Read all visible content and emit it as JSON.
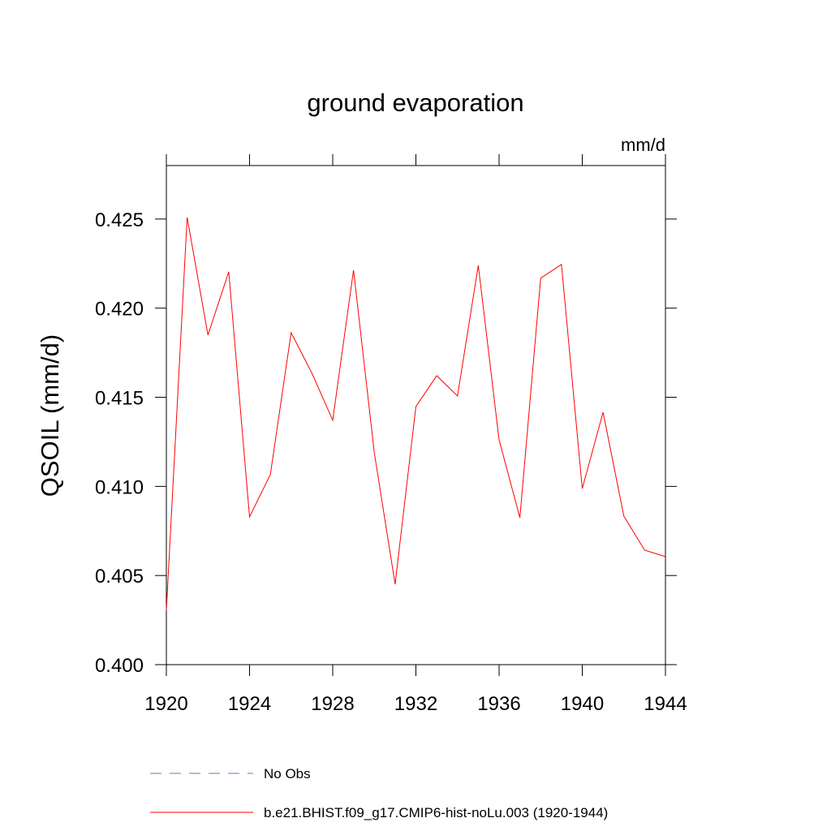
{
  "chart_data": {
    "type": "line",
    "title": "ground evaporation",
    "units": "mm/d",
    "y_label": "QSOIL  (mm/d)",
    "x": [
      1920,
      1921,
      1922,
      1923,
      1924,
      1925,
      1926,
      1927,
      1928,
      1929,
      1930,
      1931,
      1932,
      1933,
      1934,
      1935,
      1936,
      1937,
      1938,
      1939,
      1940,
      1941,
      1942,
      1943,
      1944
    ],
    "series": [
      {
        "name": "No Obs",
        "color": "#7a72b8",
        "dashed": true,
        "values": [
          null,
          null,
          null,
          null,
          null,
          null,
          null,
          null,
          null,
          null,
          null,
          null,
          null,
          null,
          null,
          null,
          null,
          null,
          null,
          null,
          null,
          null,
          null,
          null,
          null
        ]
      },
      {
        "name": "b.e21.BHIST.f09_g17.CMIP6-hist-noLu.003 (1920-1944)",
        "color": "#ff0000",
        "dashed": false,
        "values": [
          0.40305,
          0.42509,
          0.41849,
          0.42204,
          0.40829,
          0.41066,
          0.41862,
          0.41635,
          0.41371,
          0.42213,
          0.41189,
          0.40451,
          0.41448,
          0.41621,
          0.41507,
          0.4224,
          0.41261,
          0.40824,
          0.42168,
          0.42245,
          0.40988,
          0.41416,
          0.40833,
          0.40642,
          0.40606
        ]
      }
    ],
    "xlim": [
      1920,
      1944
    ],
    "xticks": [
      1920,
      1924,
      1928,
      1932,
      1936,
      1940,
      1944
    ],
    "ylim": [
      0.4,
      0.428
    ],
    "yticks": [
      {
        "value": 0.4,
        "label": "0.400"
      },
      0.405,
      {
        "value": 0.41,
        "label": "0.410"
      },
      0.415,
      {
        "value": 0.42,
        "label": "0.420"
      },
      0.425
    ]
  }
}
